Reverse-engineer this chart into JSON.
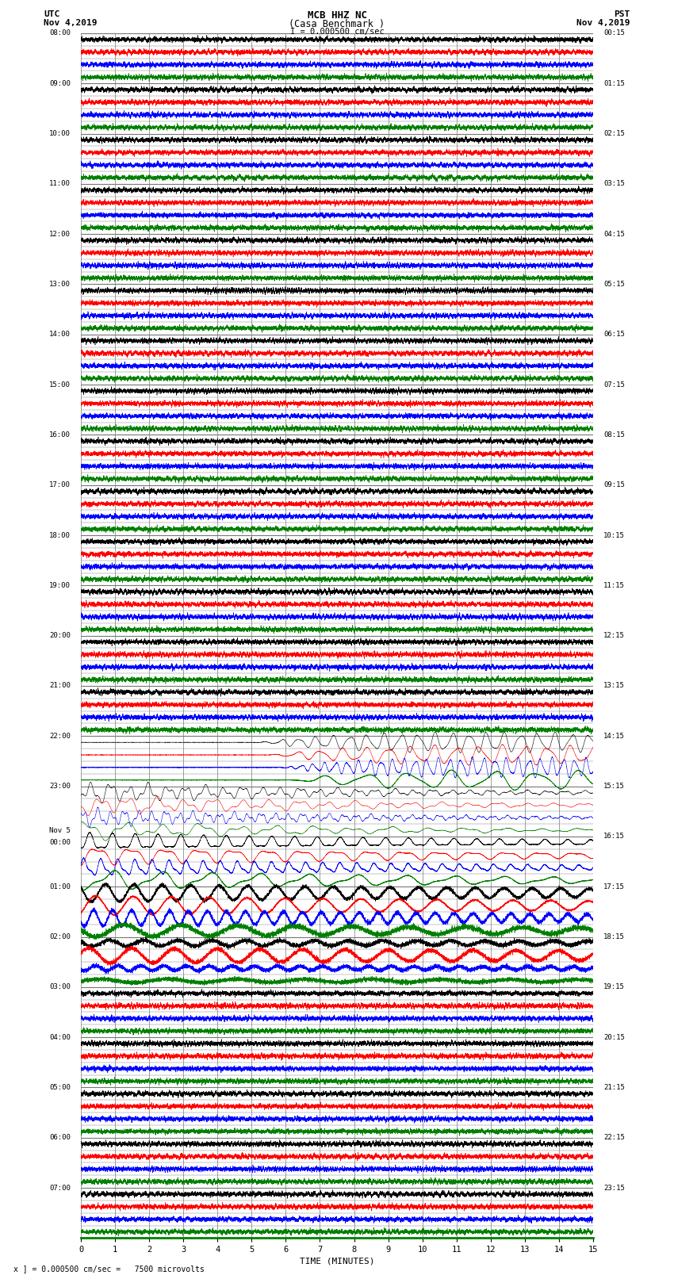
{
  "title_line1": "MCB HHZ NC",
  "title_line2": "(Casa Benchmark )",
  "title_line3": "I = 0.000500 cm/sec",
  "left_label_top": "UTC",
  "left_label_date": "Nov 4,2019",
  "right_label_top": "PST",
  "right_label_date": "Nov 4,2019",
  "bottom_label": "TIME (MINUTES)",
  "bottom_note": "x ] = 0.000500 cm/sec =   7500 microvolts",
  "utc_times": [
    "08:00",
    "09:00",
    "10:00",
    "11:00",
    "12:00",
    "13:00",
    "14:00",
    "15:00",
    "16:00",
    "17:00",
    "18:00",
    "19:00",
    "20:00",
    "21:00",
    "22:00",
    "23:00",
    "Nov 5\n00:00",
    "01:00",
    "02:00",
    "03:00",
    "04:00",
    "05:00",
    "06:00",
    "07:00"
  ],
  "pst_times": [
    "00:15",
    "01:15",
    "02:15",
    "03:15",
    "04:15",
    "05:15",
    "06:15",
    "07:15",
    "08:15",
    "09:15",
    "10:15",
    "11:15",
    "12:15",
    "13:15",
    "14:15",
    "15:15",
    "16:15",
    "17:15",
    "18:15",
    "19:15",
    "20:15",
    "21:15",
    "22:15",
    "23:15"
  ],
  "colors": [
    "black",
    "red",
    "blue",
    "green"
  ],
  "bg_color": "white",
  "grid_color": "#777777",
  "num_time_blocks": 24,
  "traces_per_block": 4,
  "x_min": 0,
  "x_max": 15,
  "x_ticks": [
    0,
    1,
    2,
    3,
    4,
    5,
    6,
    7,
    8,
    9,
    10,
    11,
    12,
    13,
    14,
    15
  ],
  "event_blocks": [
    14,
    15,
    16,
    17,
    18
  ],
  "quiet_noise_std": 0.08,
  "event_amp": 3.5
}
